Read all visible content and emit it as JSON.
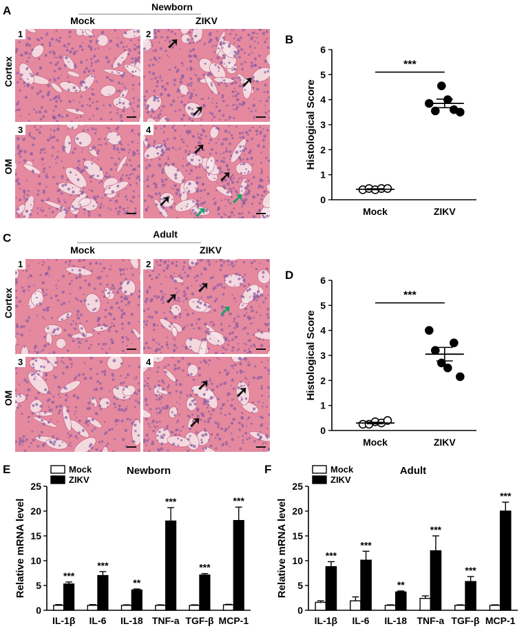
{
  "panels": {
    "A": {
      "letter": "A",
      "group_title": "Newborn",
      "col_headers": [
        "Mock",
        "ZIKV"
      ],
      "row_headers": [
        "Cortex",
        "OM"
      ],
      "tile_numbers": [
        "1",
        "2",
        "3",
        "4"
      ]
    },
    "C": {
      "letter": "C",
      "group_title": "Adult",
      "col_headers": [
        "Mock",
        "ZIKV"
      ],
      "row_headers": [
        "Cortex",
        "OM"
      ],
      "tile_numbers": [
        "1",
        "2",
        "3",
        "4"
      ]
    },
    "B": {
      "letter": "B"
    },
    "D": {
      "letter": "D"
    },
    "E": {
      "letter": "E"
    },
    "F": {
      "letter": "F"
    }
  },
  "colors": {
    "he_pink": "#e5899f",
    "he_purple": "#8e5fa3",
    "black_arrow": "#111111",
    "green_arrow": "#1aa06d"
  },
  "chart_data": [
    {
      "id": "B",
      "type": "scatter",
      "ylabel": "Histological Score",
      "categories": [
        "Mock",
        "ZIKV"
      ],
      "ylim": [
        0,
        6
      ],
      "yticks": [
        "0",
        "1",
        "2",
        "3",
        "4",
        "5",
        "6"
      ],
      "series": [
        {
          "values": [
            0.4,
            0.45,
            0.4,
            0.45,
            0.45
          ],
          "mean": 0.42,
          "sem": 0.02,
          "fill": "open"
        },
        {
          "values": [
            3.85,
            3.55,
            4.55,
            4.0,
            3.6,
            3.5
          ],
          "mean": 3.85,
          "sem": 0.17,
          "fill": "filled"
        }
      ],
      "significance": "***"
    },
    {
      "id": "D",
      "type": "scatter",
      "ylabel": "Histological Score",
      "categories": [
        "Mock",
        "ZIKV"
      ],
      "ylim": [
        0,
        6
      ],
      "yticks": [
        "0",
        "1",
        "2",
        "3",
        "4",
        "5",
        "6"
      ],
      "series": [
        {
          "values": [
            0.25,
            0.25,
            0.35,
            0.3,
            0.4
          ],
          "mean": 0.3,
          "sem": 0.03,
          "fill": "open"
        },
        {
          "values": [
            4.0,
            3.2,
            2.7,
            2.5,
            3.5,
            2.15
          ],
          "mean": 3.05,
          "sem": 0.27,
          "fill": "filled"
        }
      ],
      "significance": "***"
    },
    {
      "id": "E",
      "type": "bar",
      "title": "Newborn",
      "ylabel": "Relative mRNA level",
      "categories": [
        "IL-1β",
        "IL-6",
        "IL-18",
        "TNF-a",
        "TGF-β",
        "MCP-1"
      ],
      "ylim": [
        0,
        25
      ],
      "yticks": [
        "0",
        "5",
        "10",
        "15",
        "20",
        "25"
      ],
      "series": [
        {
          "name": "Mock",
          "values": [
            1.0,
            1.0,
            1.0,
            1.0,
            1.0,
            1.1
          ],
          "errors": [
            0.15,
            0.15,
            0.1,
            0.1,
            0.1,
            0.1
          ]
        },
        {
          "name": "ZIKV",
          "values": [
            5.3,
            7.0,
            4.1,
            18.0,
            7.1,
            18.1
          ],
          "errors": [
            0.4,
            0.8,
            0.2,
            2.7,
            0.3,
            2.7
          ]
        }
      ],
      "significance": [
        "***",
        "***",
        "**",
        "***",
        "***",
        "***"
      ]
    },
    {
      "id": "F",
      "type": "bar",
      "title": "Adult",
      "ylabel": "Relative mRNA level",
      "categories": [
        "IL-1β",
        "IL-6",
        "IL-18",
        "TNF-a",
        "TGF-β",
        "MCP-1"
      ],
      "ylim": [
        0,
        25
      ],
      "yticks": [
        "0",
        "5",
        "10",
        "15",
        "20",
        "25"
      ],
      "series": [
        {
          "name": "Mock",
          "values": [
            1.6,
            1.9,
            1.0,
            2.4,
            1.0,
            1.0
          ],
          "errors": [
            0.3,
            0.8,
            0.1,
            0.5,
            0.1,
            0.1
          ]
        },
        {
          "name": "ZIKV",
          "values": [
            8.8,
            10.1,
            3.7,
            12.0,
            5.8,
            20.0
          ],
          "errors": [
            1.0,
            1.8,
            0.2,
            3.0,
            1.0,
            1.8
          ]
        }
      ],
      "significance": [
        "***",
        "***",
        "**",
        "***",
        "***",
        "***"
      ]
    }
  ]
}
